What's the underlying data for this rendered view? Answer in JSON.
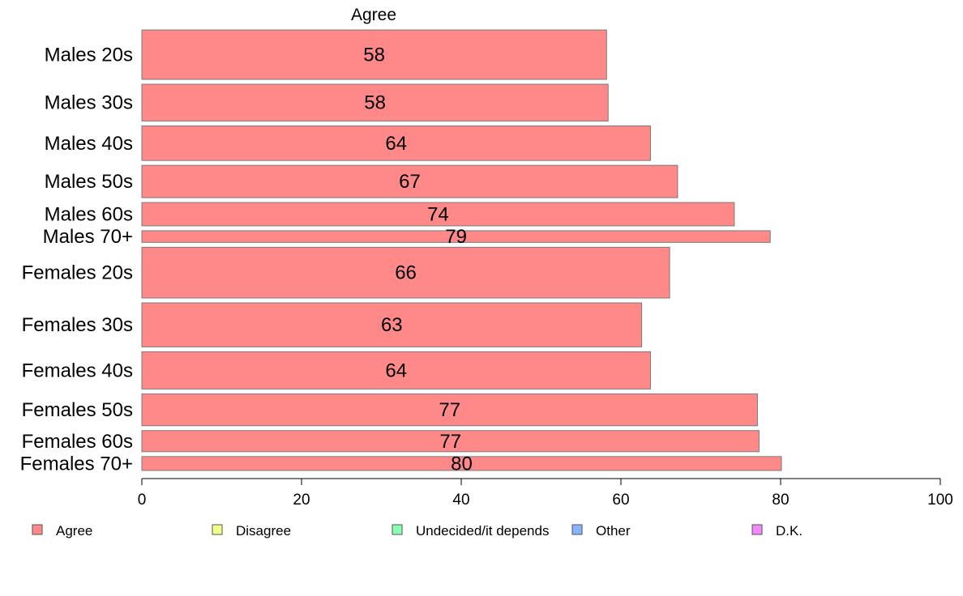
{
  "chart_data": {
    "type": "bar",
    "orientation": "horizontal",
    "title": "",
    "column_header": "Agree",
    "xlabel": "",
    "ylabel": "",
    "xlim": [
      0,
      100
    ],
    "ticks": [
      0,
      20,
      40,
      60,
      80,
      100
    ],
    "grid": false,
    "legend_position": "bottom",
    "categories": [
      {
        "label": "Males 20s",
        "value": 58.2,
        "display": "58",
        "weight": 1.1
      },
      {
        "label": "Males 30s",
        "value": 58.4,
        "display": "58",
        "weight": 0.82
      },
      {
        "label": "Males 40s",
        "value": 63.7,
        "display": "64",
        "weight": 0.77
      },
      {
        "label": "Males 50s",
        "value": 67.1,
        "display": "67",
        "weight": 0.72
      },
      {
        "label": "Males 60s",
        "value": 74.2,
        "display": "74",
        "weight": 0.52
      },
      {
        "label": "Males 70+",
        "value": 78.7,
        "display": "79",
        "weight": 0.26
      },
      {
        "label": "Females 20s",
        "value": 66.1,
        "display": "66",
        "weight": 1.13
      },
      {
        "label": "Females 30s",
        "value": 62.6,
        "display": "63",
        "weight": 0.98
      },
      {
        "label": "Females 40s",
        "value": 63.7,
        "display": "64",
        "weight": 0.83
      },
      {
        "label": "Females 50s",
        "value": 77.1,
        "display": "77",
        "weight": 0.71
      },
      {
        "label": "Females 60s",
        "value": 77.3,
        "display": "77",
        "weight": 0.47
      },
      {
        "label": "Females 70+",
        "value": 80.1,
        "display": "80",
        "weight": 0.31
      }
    ],
    "series": [
      {
        "name": "Agree",
        "color": "#ff8989"
      }
    ],
    "legend": [
      {
        "label": "Agree",
        "color": "#ff8989"
      },
      {
        "label": "Disagree",
        "color": "#f2ff89"
      },
      {
        "label": "Undecided/it depends",
        "color": "#89ffb4"
      },
      {
        "label": "Other",
        "color": "#89b4ff"
      },
      {
        "label": "D.K.",
        "color": "#f289ff"
      }
    ],
    "colors": {
      "bar_stroke": "#7a7a7a",
      "axis": "#000000"
    }
  }
}
